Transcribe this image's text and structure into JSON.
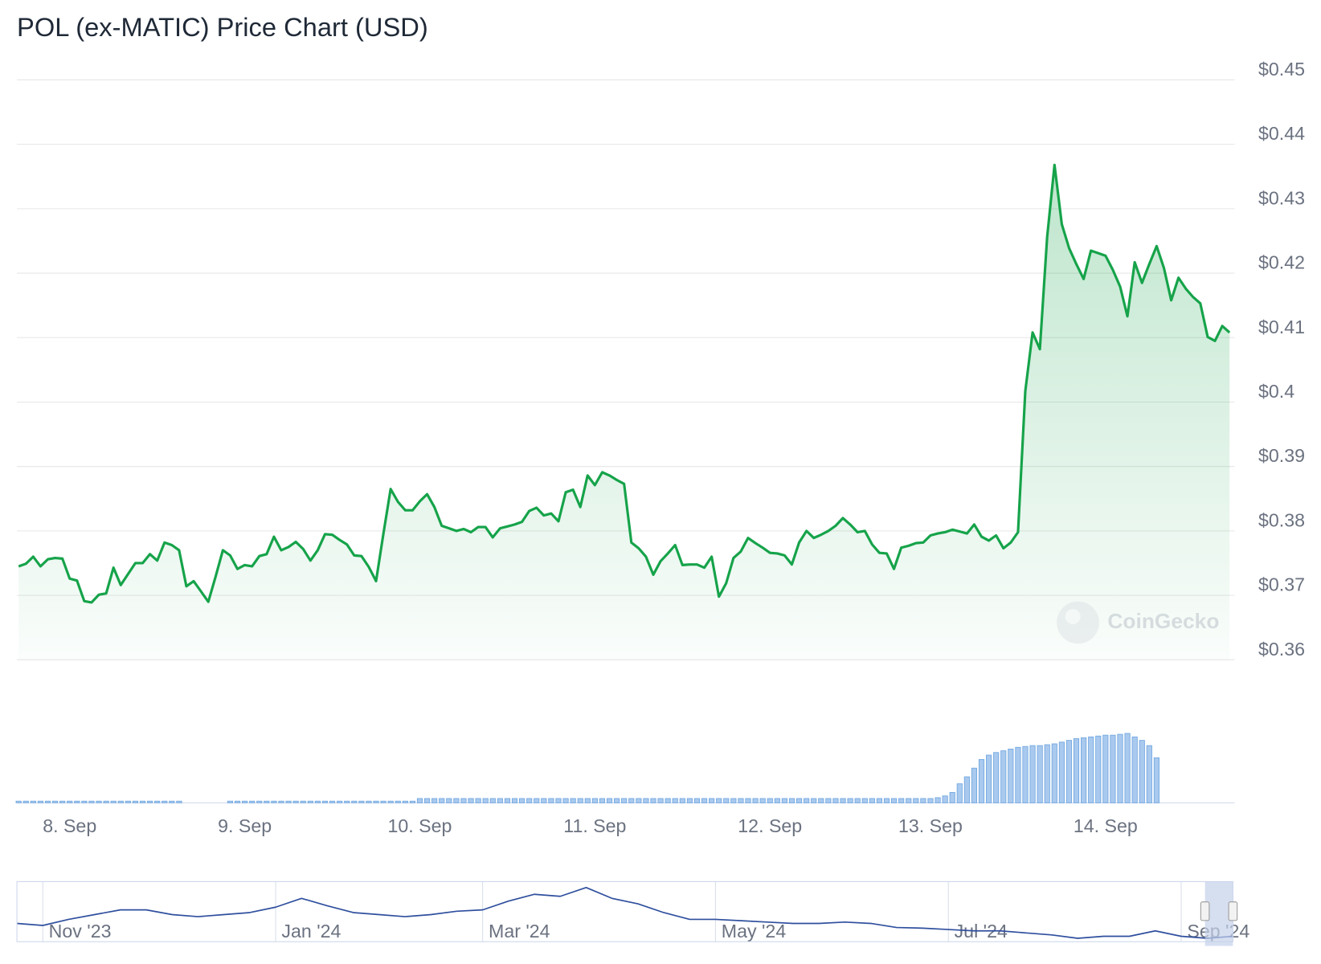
{
  "chart_data": [
    {
      "type": "line",
      "title": "POL (ex-MATIC) Price Chart (USD)",
      "watermark": "CoinGecko",
      "color": "#16a34a",
      "grid": true,
      "ylim": [
        0.36,
        0.45
      ],
      "yticks": [
        {
          "value": 0.36,
          "label": "$0.36"
        },
        {
          "value": 0.37,
          "label": "$0.37"
        },
        {
          "value": 0.38,
          "label": "$0.38"
        },
        {
          "value": 0.39,
          "label": "$0.39"
        },
        {
          "value": 0.4,
          "label": "$0.4"
        },
        {
          "value": 0.41,
          "label": "$0.41"
        },
        {
          "value": 0.42,
          "label": "$0.42"
        },
        {
          "value": 0.43,
          "label": "$0.43"
        },
        {
          "value": 0.44,
          "label": "$0.44"
        },
        {
          "value": 0.45,
          "label": "$0.45"
        }
      ],
      "categories": [
        null,
        null,
        null,
        null,
        null,
        null,
        null,
        "8. Sep",
        null,
        null,
        null,
        null,
        null,
        null,
        null,
        null,
        null,
        null,
        null,
        null,
        null,
        null,
        null,
        null,
        null,
        null,
        null,
        null,
        null,
        null,
        null,
        "9. Sep",
        null,
        null,
        null,
        null,
        null,
        null,
        null,
        null,
        null,
        null,
        null,
        null,
        null,
        null,
        null,
        null,
        null,
        null,
        null,
        null,
        null,
        null,
        null,
        "10. Sep",
        null,
        null,
        null,
        null,
        null,
        null,
        null,
        null,
        null,
        null,
        null,
        null,
        null,
        null,
        null,
        null,
        null,
        null,
        null,
        null,
        null,
        null,
        null,
        "11. Sep",
        null,
        null,
        null,
        null,
        null,
        null,
        null,
        null,
        null,
        null,
        null,
        null,
        null,
        null,
        null,
        null,
        null,
        null,
        null,
        null,
        null,
        null,
        null,
        "12. Sep",
        null,
        null,
        null,
        null,
        null,
        null,
        null,
        null,
        null,
        null,
        null,
        null,
        null,
        null,
        null,
        null,
        null,
        null,
        null,
        null,
        null,
        "13. Sep",
        null,
        null,
        null,
        null,
        null,
        null,
        null,
        null,
        null,
        null,
        null,
        null,
        null,
        null,
        null,
        null,
        null,
        null,
        null,
        null,
        null,
        null,
        null,
        "14. Sep",
        null,
        null,
        null,
        null,
        null,
        null,
        null,
        null,
        null,
        null,
        null,
        null,
        null,
        null,
        null,
        null,
        null
      ],
      "values": [
        0.3745,
        0.3749,
        0.376,
        0.3745,
        0.3756,
        0.3758,
        0.3757,
        0.3726,
        0.3723,
        0.3691,
        0.3689,
        0.3701,
        0.3703,
        0.3743,
        0.3716,
        0.3733,
        0.375,
        0.375,
        0.3764,
        0.3754,
        0.3782,
        0.3778,
        0.377,
        0.3714,
        0.3722,
        0.3706,
        0.369,
        0.3729,
        0.377,
        0.3762,
        0.3741,
        0.3747,
        0.3745,
        0.3761,
        0.3764,
        0.3791,
        0.377,
        0.3775,
        0.3783,
        0.3772,
        0.3754,
        0.377,
        0.3795,
        0.3794,
        0.3786,
        0.3779,
        0.3762,
        0.3761,
        0.3744,
        0.3722,
        0.3795,
        0.3865,
        0.3845,
        0.3832,
        0.3832,
        0.3846,
        0.3857,
        0.3837,
        0.3808,
        0.3804,
        0.38,
        0.3803,
        0.3798,
        0.3806,
        0.3806,
        0.379,
        0.3804,
        0.3807,
        0.381,
        0.3814,
        0.3831,
        0.3836,
        0.3824,
        0.3827,
        0.3815,
        0.386,
        0.3864,
        0.3837,
        0.3886,
        0.3871,
        0.3891,
        0.3886,
        0.3879,
        0.3873,
        0.3782,
        0.3773,
        0.376,
        0.3732,
        0.3753,
        0.3765,
        0.3778,
        0.3747,
        0.3748,
        0.3748,
        0.3743,
        0.376,
        0.3698,
        0.3719,
        0.3758,
        0.3768,
        0.3789,
        0.3781,
        0.3774,
        0.3766,
        0.3765,
        0.3762,
        0.3748,
        0.3782,
        0.38,
        0.3789,
        0.3794,
        0.38,
        0.3808,
        0.382,
        0.381,
        0.3798,
        0.38,
        0.3779,
        0.3766,
        0.3765,
        0.3741,
        0.3774,
        0.3777,
        0.3781,
        0.3782,
        0.3793,
        0.3796,
        0.3798,
        0.3802,
        0.3799,
        0.3796,
        0.381,
        0.3791,
        0.3785,
        0.3793,
        0.3773,
        0.3782,
        0.3798,
        0.4017,
        0.4108,
        0.4082,
        0.4256,
        0.4368,
        0.4276,
        0.4239,
        0.4214,
        0.4191,
        0.4235,
        0.4231,
        0.4227,
        0.4205,
        0.4179,
        0.4133,
        0.4217,
        0.4185,
        0.4214,
        0.4242,
        0.4208,
        0.4158,
        0.4193,
        0.4176,
        0.4163,
        0.4153,
        0.4101,
        0.4095,
        0.4118,
        0.4108
      ]
    },
    {
      "type": "bar",
      "color": "#a9c9ee",
      "values": [
        2,
        2,
        2,
        2,
        2,
        2,
        2,
        2,
        2,
        2,
        2,
        2,
        2,
        2,
        2,
        2,
        2,
        2,
        2,
        2,
        2,
        2,
        2,
        0,
        0,
        0,
        0,
        0,
        0,
        2,
        2,
        2,
        2,
        2,
        2,
        2,
        2,
        2,
        2,
        2,
        2,
        2,
        2,
        2,
        2,
        2,
        2,
        2,
        2,
        2,
        2,
        2,
        2,
        2,
        2,
        5,
        5,
        5,
        5,
        5,
        5,
        5,
        5,
        5,
        5,
        5,
        5,
        5,
        5,
        5,
        5,
        5,
        5,
        5,
        5,
        5,
        5,
        5,
        5,
        5,
        5,
        5,
        5,
        5,
        5,
        5,
        5,
        5,
        5,
        5,
        5,
        5,
        5,
        5,
        5,
        5,
        5,
        5,
        5,
        5,
        5,
        5,
        5,
        5,
        5,
        5,
        5,
        5,
        5,
        5,
        5,
        5,
        5,
        5,
        5,
        5,
        5,
        5,
        5,
        5,
        5,
        5,
        5,
        5,
        5,
        5,
        6,
        8,
        12,
        22,
        30,
        40,
        50,
        55,
        58,
        60,
        62,
        64,
        65,
        66,
        66,
        67,
        68,
        70,
        72,
        74,
        75,
        76,
        77,
        78,
        78,
        79,
        80,
        76,
        72,
        66,
        52
      ]
    },
    {
      "type": "line",
      "color": "#2f4f9e",
      "categories": [
        null,
        "Nov '23",
        null,
        null,
        null,
        null,
        null,
        null,
        null,
        null,
        "Jan '24",
        null,
        null,
        null,
        null,
        null,
        null,
        null,
        "Mar '24",
        null,
        null,
        null,
        null,
        null,
        null,
        null,
        null,
        "May '24",
        null,
        null,
        null,
        null,
        null,
        null,
        null,
        null,
        "Jul '24",
        null,
        null,
        null,
        null,
        null,
        null,
        null,
        null,
        "Sep '24",
        null,
        null
      ],
      "values": [
        0.65,
        0.62,
        0.71,
        0.78,
        0.85,
        0.85,
        0.78,
        0.75,
        0.78,
        0.81,
        0.89,
        1.02,
        0.91,
        0.81,
        0.78,
        0.75,
        0.78,
        0.83,
        0.85,
        0.98,
        1.08,
        1.05,
        1.18,
        1.02,
        0.94,
        0.81,
        0.71,
        0.71,
        0.69,
        0.67,
        0.65,
        0.65,
        0.67,
        0.65,
        0.59,
        0.58,
        0.56,
        0.54,
        0.54,
        0.51,
        0.48,
        0.43,
        0.46,
        0.46,
        0.54,
        0.46,
        0.43,
        0.46
      ]
    }
  ]
}
